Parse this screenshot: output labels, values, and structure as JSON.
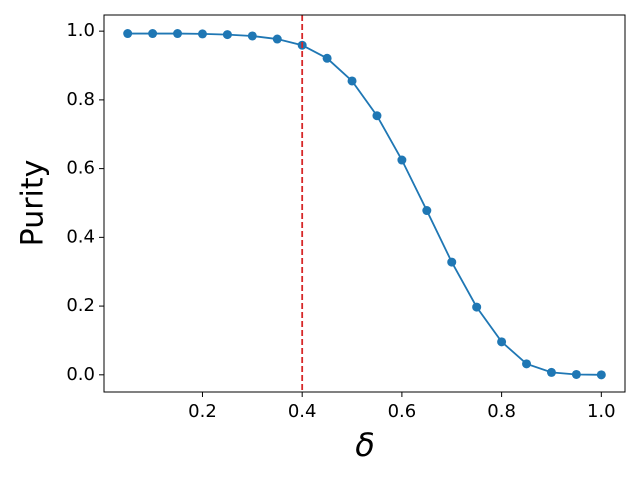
{
  "chart_data": {
    "type": "line",
    "xlabel": "δ",
    "ylabel": "Purity",
    "x": [
      0.05,
      0.1,
      0.15,
      0.2,
      0.25,
      0.3,
      0.35,
      0.4,
      0.45,
      0.5,
      0.55,
      0.6,
      0.65,
      0.7,
      0.75,
      0.8,
      0.85,
      0.9,
      0.95,
      1.0
    ],
    "series": [
      {
        "color": "#1f77b4",
        "values": [
          0.993,
          0.993,
          0.993,
          0.992,
          0.99,
          0.986,
          0.977,
          0.959,
          0.921,
          0.855,
          0.754,
          0.625,
          0.478,
          0.328,
          0.197,
          0.096,
          0.032,
          0.007,
          0.001,
          0.0
        ]
      }
    ],
    "vline": {
      "x": 0.4,
      "color": "#d62728",
      "dashed": true
    },
    "xlim": [
      0.0025,
      1.0475
    ],
    "ylim": [
      -0.05,
      1.047
    ],
    "xticks": [
      0.2,
      0.4,
      0.6,
      0.8,
      {
        "value": 1.0,
        "label": "1.0"
      }
    ],
    "yticks": [
      {
        "value": 0,
        "label": "0.0"
      },
      0.2,
      0.4,
      0.6,
      0.8,
      {
        "value": 1.0,
        "label": "1.0"
      }
    ]
  }
}
